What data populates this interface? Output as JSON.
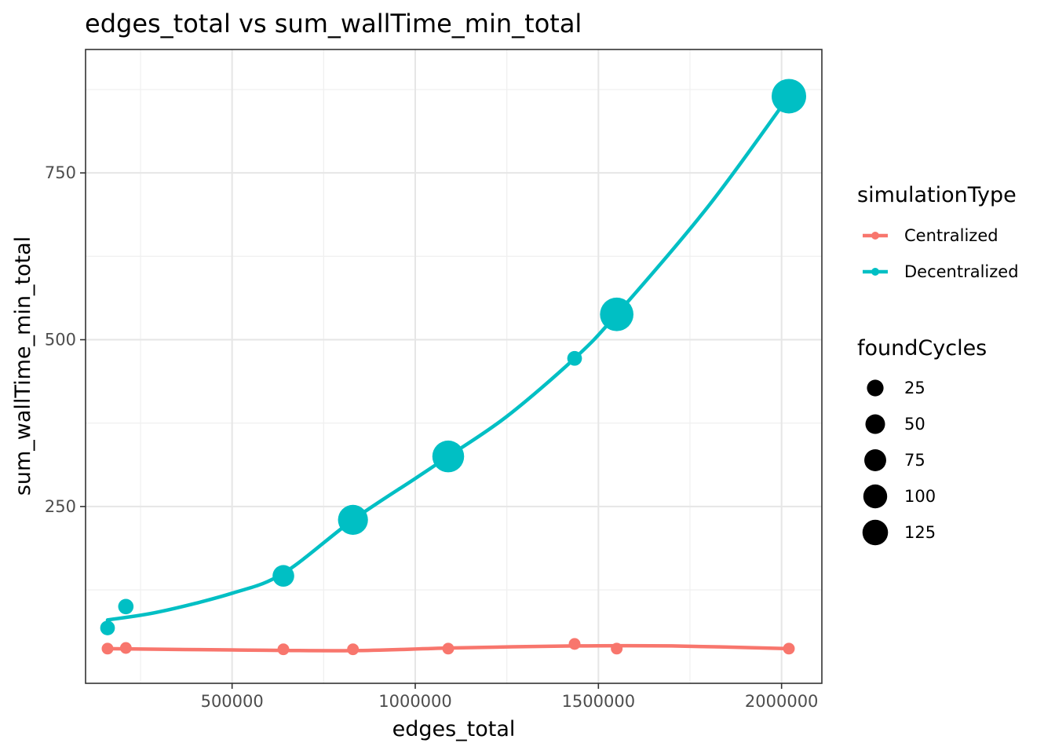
{
  "chart_data": {
    "type": "scatter",
    "title": "edges_total  vs  sum_wallTime_min_total",
    "xlabel": "edges_total",
    "ylabel": "sum_wallTime_min_total",
    "xlim": [
      100000,
      2110000
    ],
    "ylim": [
      -15,
      935
    ],
    "x_ticks": [
      500000,
      1000000,
      1500000,
      2000000
    ],
    "x_minor": [
      250000,
      750000,
      1250000,
      1750000
    ],
    "y_ticks": [
      250,
      500,
      750
    ],
    "y_minor": [
      125,
      375,
      625,
      875
    ],
    "grid": true,
    "legend_placement": "right",
    "color_legend": {
      "title": "simulationType",
      "entries": [
        {
          "label": "Centralized",
          "color": "#F8766D"
        },
        {
          "label": "Decentralized",
          "color": "#00BFC4"
        }
      ]
    },
    "size_legend": {
      "title": "foundCycles",
      "entries": [
        {
          "label": "25",
          "value": 25
        },
        {
          "label": "50",
          "value": 50
        },
        {
          "label": "75",
          "value": 75
        },
        {
          "label": "100",
          "value": 100
        },
        {
          "label": "125",
          "value": 125
        }
      ]
    },
    "series": [
      {
        "name": "Centralized",
        "color": "#F8766D",
        "points": [
          {
            "x": 160000,
            "y": 37,
            "size": 5
          },
          {
            "x": 210000,
            "y": 38,
            "size": 5
          },
          {
            "x": 640000,
            "y": 36,
            "size": 5
          },
          {
            "x": 830000,
            "y": 36,
            "size": 5
          },
          {
            "x": 1090000,
            "y": 37,
            "size": 5
          },
          {
            "x": 1435000,
            "y": 44,
            "size": 5
          },
          {
            "x": 1550000,
            "y": 37,
            "size": 5
          },
          {
            "x": 2020000,
            "y": 37,
            "size": 5
          }
        ],
        "smooth": [
          [
            160000,
            37
          ],
          [
            500000,
            35
          ],
          [
            830000,
            34
          ],
          [
            1100000,
            38
          ],
          [
            1435000,
            41
          ],
          [
            1700000,
            41
          ],
          [
            2020000,
            37
          ]
        ]
      },
      {
        "name": "Decentralized",
        "color": "#00BFC4",
        "points": [
          {
            "x": 160000,
            "y": 68,
            "size": 12
          },
          {
            "x": 210000,
            "y": 100,
            "size": 14
          },
          {
            "x": 640000,
            "y": 146,
            "size": 40
          },
          {
            "x": 830000,
            "y": 230,
            "size": 95
          },
          {
            "x": 1090000,
            "y": 325,
            "size": 110
          },
          {
            "x": 1435000,
            "y": 472,
            "size": 12
          },
          {
            "x": 1550000,
            "y": 538,
            "size": 125
          },
          {
            "x": 2020000,
            "y": 865,
            "size": 135
          }
        ],
        "smooth": [
          [
            160000,
            80
          ],
          [
            300000,
            92
          ],
          [
            500000,
            120
          ],
          [
            640000,
            150
          ],
          [
            830000,
            230
          ],
          [
            1000000,
            292
          ],
          [
            1090000,
            325
          ],
          [
            1250000,
            385
          ],
          [
            1435000,
            472
          ],
          [
            1550000,
            538
          ],
          [
            1800000,
            700
          ],
          [
            2020000,
            865
          ]
        ]
      }
    ]
  }
}
